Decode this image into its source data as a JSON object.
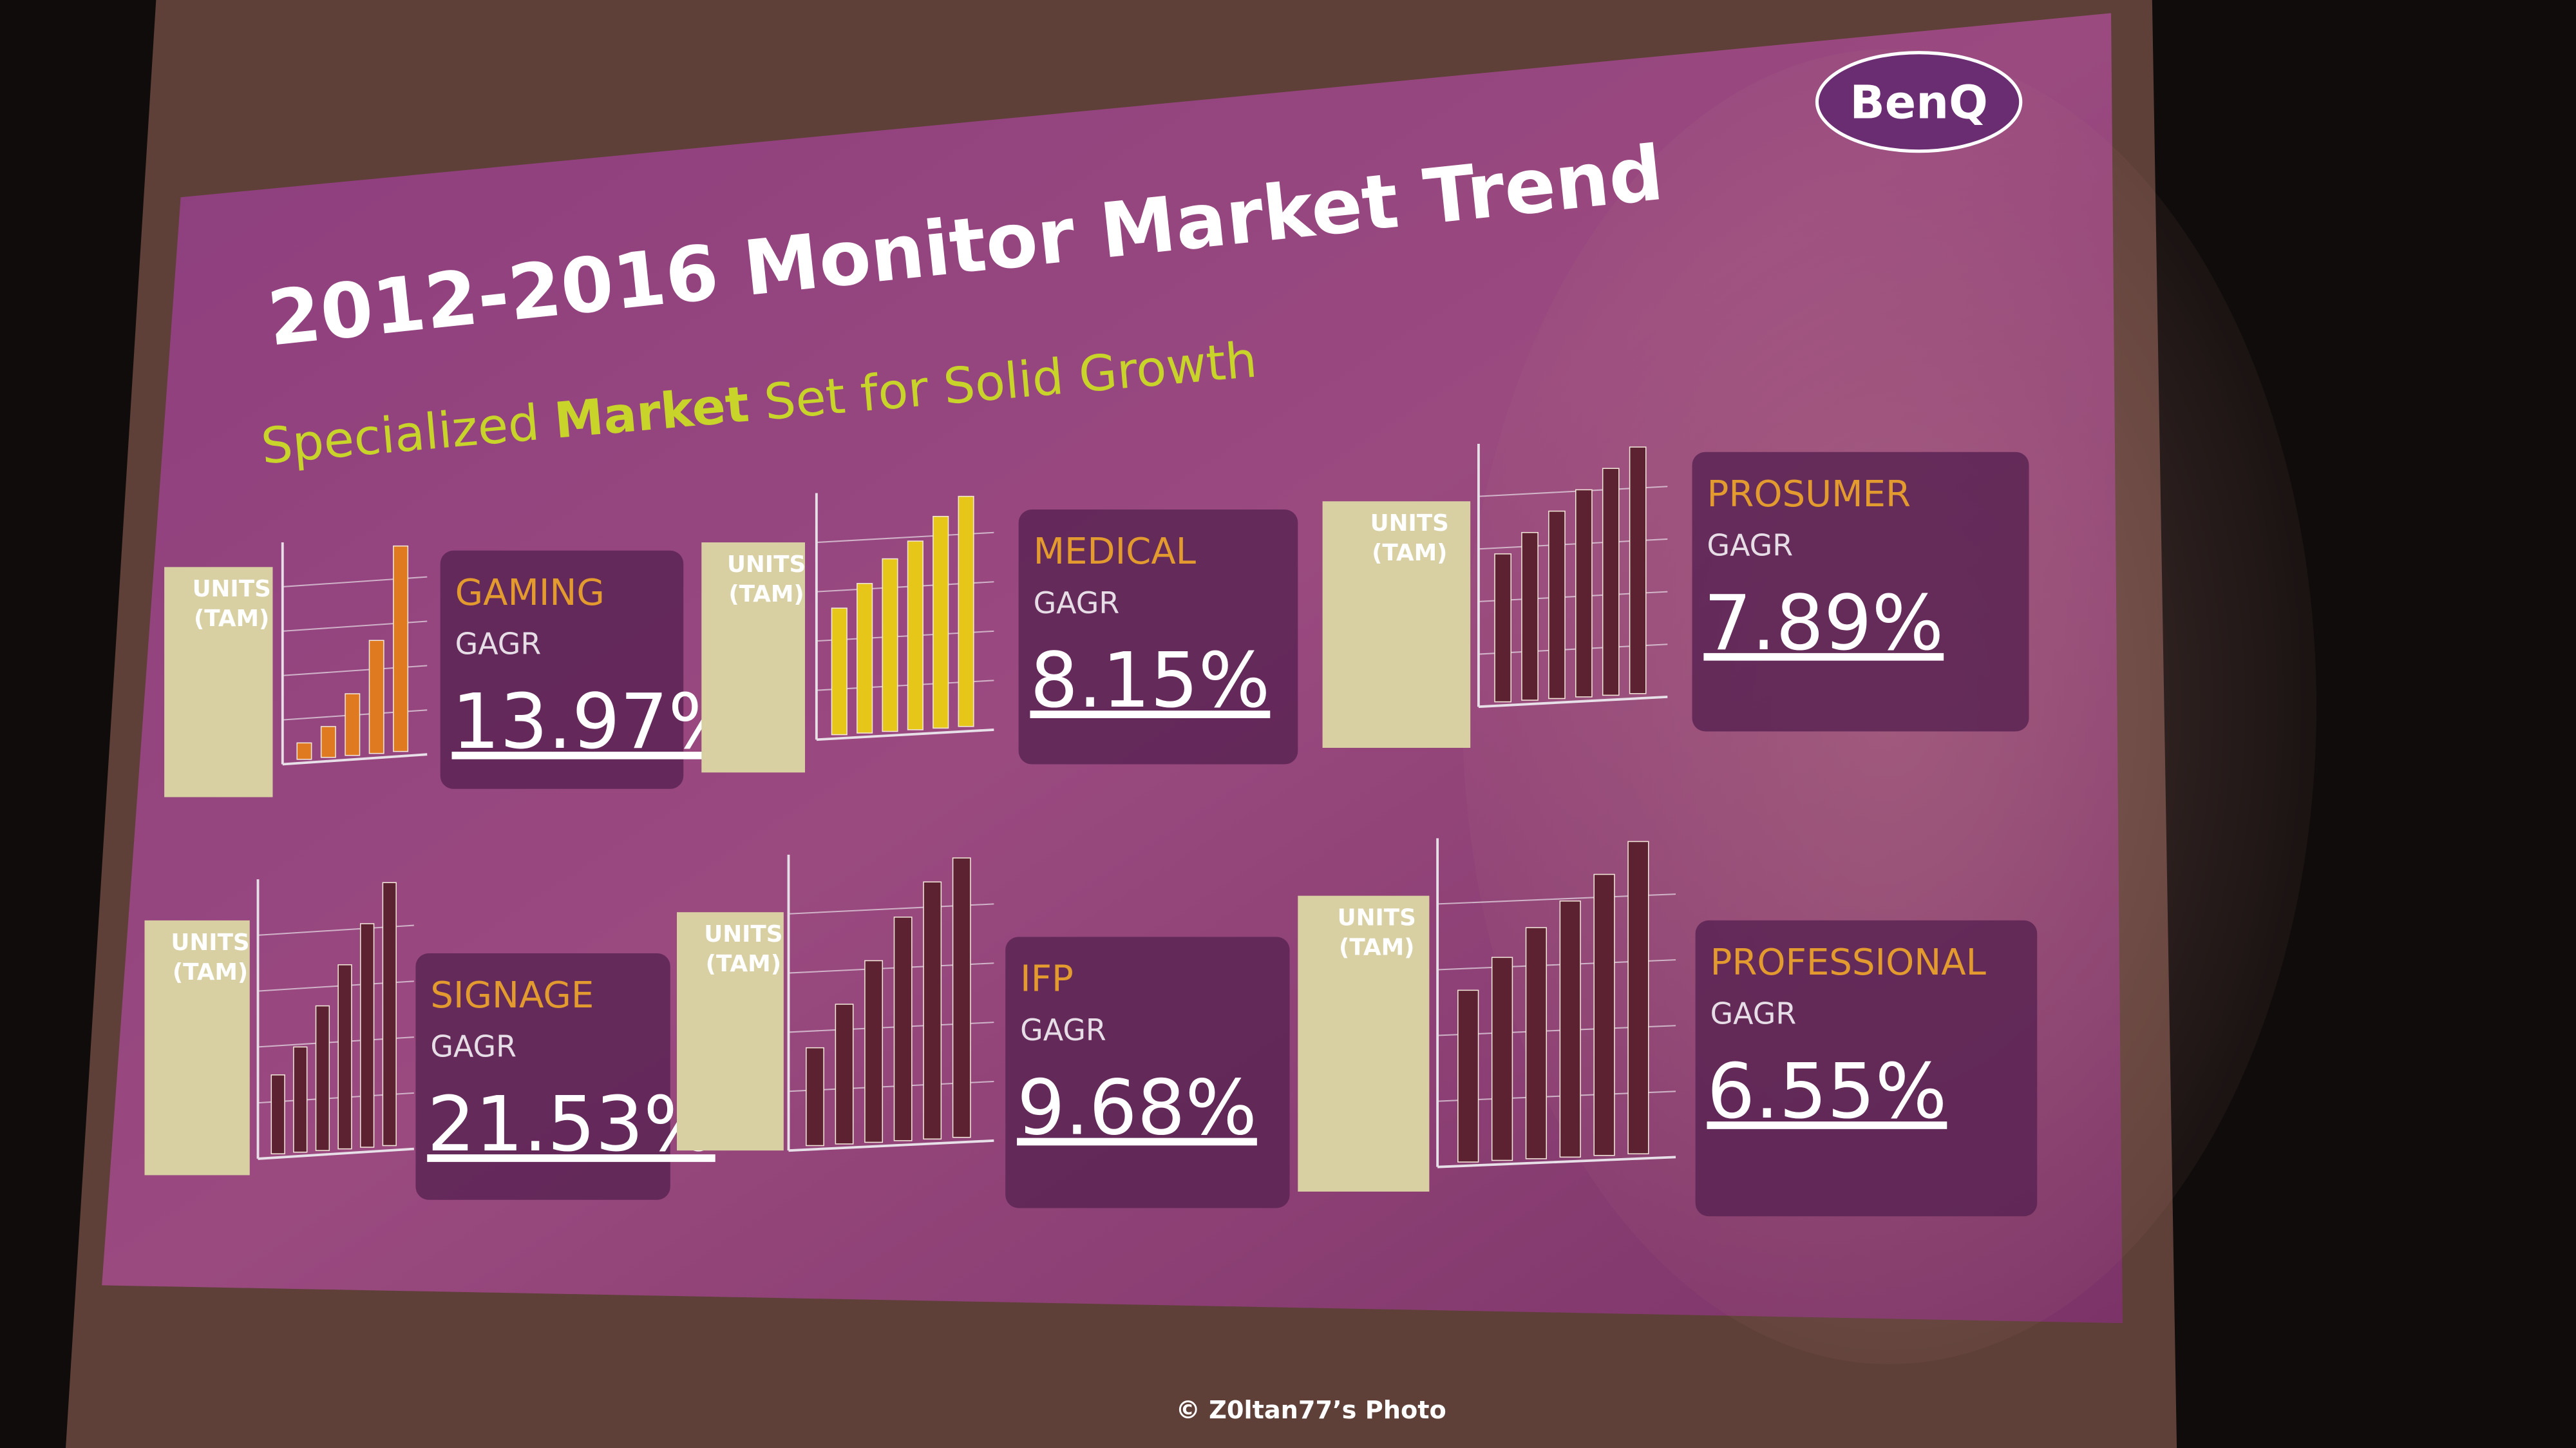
{
  "slide": {
    "logo": "BenQ",
    "title": "2012-2016 Monitor Market Trend",
    "subtitle": {
      "lead": "Specialized ",
      "bold": "Market",
      "tail": " Set for Solid Growth"
    },
    "axis_label": {
      "line1": "UNITS",
      "line2": "(TAM)"
    },
    "metric": "GAGR",
    "panels": [
      {
        "name": "GAMING",
        "value": "13.97%",
        "bar_color": "#e07a20",
        "bars": [
          8,
          15,
          30,
          55,
          100
        ]
      },
      {
        "name": "MEDICAL",
        "value": "8.15%",
        "bar_color": "#e6c619",
        "bars": [
          55,
          65,
          75,
          82,
          92,
          100
        ]
      },
      {
        "name": "PROSUMER",
        "value": "7.89%",
        "bar_color": "#5c2231",
        "bars": [
          60,
          68,
          76,
          84,
          92,
          100
        ]
      },
      {
        "name": "SIGNAGE",
        "value": "21.53%",
        "bar_color": "#5c2231",
        "bars": [
          30,
          40,
          55,
          70,
          85,
          100
        ]
      },
      {
        "name": "IFP",
        "value": "9.68%",
        "bar_color": "#5c2231",
        "bars": [
          35,
          50,
          65,
          80,
          92,
          100
        ]
      },
      {
        "name": "PROFESSIONAL",
        "value": "6.55%",
        "bar_color": "#5c2231",
        "bars": [
          55,
          65,
          74,
          82,
          90,
          100
        ]
      }
    ]
  },
  "credit": "© Z0ltan77’s Photo"
}
